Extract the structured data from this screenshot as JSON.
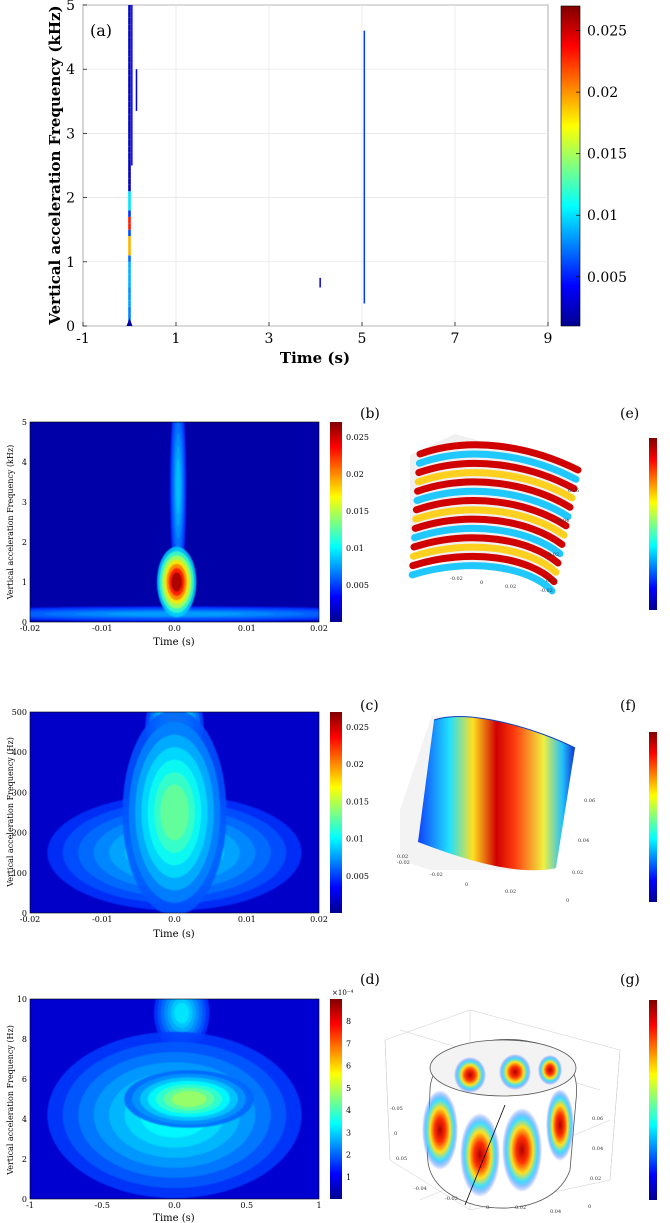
{
  "figure": {
    "panel_labels": [
      "(a)",
      "(b)",
      "(c)",
      "(d)",
      "(e)",
      "(f)",
      "(g)"
    ]
  },
  "chart_data": [
    {
      "id": "a",
      "type": "heatmap",
      "title": "",
      "xlabel": "Time (s)",
      "ylabel": "Vertical acceleration Frequency (kHz)",
      "xlim": [
        -1,
        9
      ],
      "ylim": [
        0,
        5
      ],
      "xticks": [
        -1,
        1,
        3,
        5,
        7,
        9
      ],
      "yticks": [
        0,
        1,
        2,
        3,
        4,
        5
      ],
      "grid": true,
      "colorbar": {
        "range": [
          0.001,
          0.027
        ],
        "ticks": [
          0.005,
          0.01,
          0.015,
          0.02,
          0.025
        ]
      },
      "features": [
        {
          "x": 0.0,
          "y0": 0.0,
          "y1": 5.0,
          "peak": 0.027
        },
        {
          "x": 0.05,
          "y0": 2.5,
          "y1": 5.0,
          "peak": 0.003
        },
        {
          "x": 0.15,
          "y0": 3.35,
          "y1": 4.0,
          "peak": 0.002
        },
        {
          "x": 4.1,
          "y0": 0.6,
          "y1": 0.75,
          "peak": 0.002
        },
        {
          "x": 5.05,
          "y0": 0.35,
          "y1": 4.6,
          "peak": 0.006
        }
      ]
    },
    {
      "id": "b",
      "type": "heatmap",
      "title": "",
      "xlabel": "Time (s)",
      "ylabel": "Vertical acceleration Frequency (kHz)",
      "xlim": [
        -0.02,
        0.02
      ],
      "ylim": [
        0,
        5
      ],
      "xtick_labels": [
        "-0.02",
        "-0.01",
        "0.0",
        "0.01",
        "0.02"
      ],
      "yticks": [
        0,
        1,
        2,
        3,
        4,
        5
      ],
      "colorbar": {
        "range": [
          0,
          0.027
        ],
        "ticks": [
          0.005,
          0.01,
          0.015,
          0.02,
          0.025
        ]
      },
      "features": [
        {
          "x": 0.0003,
          "y": 1.0,
          "sx": 0.0017,
          "sy": 0.55,
          "value": 0.026
        },
        {
          "x": 0.0005,
          "y": 3.4,
          "sx": 0.0007,
          "sy": 1.6,
          "value": 0.006
        },
        {
          "x": 0.0,
          "y": 0.2,
          "sx": 0.022,
          "sy": 0.12,
          "value": 0.005
        }
      ]
    },
    {
      "id": "c",
      "type": "heatmap",
      "title": "",
      "xlabel": "Time (s)",
      "ylabel": "Vertical acceleration Frequency (Hz)",
      "xlim": [
        -0.02,
        0.02
      ],
      "ylim": [
        0,
        500
      ],
      "xtick_labels": [
        "-0.02",
        "-0.01",
        "0.0",
        "0.01",
        "0.02"
      ],
      "yticks": [
        0,
        100,
        200,
        300,
        400,
        500
      ],
      "colorbar": {
        "range": [
          0,
          0.027
        ],
        "ticks": [
          0.005,
          0.01,
          0.015,
          0.02,
          0.025
        ]
      },
      "features": [
        {
          "x": 0.0,
          "y": 250,
          "sx": 0.0045,
          "sy": 160,
          "value": 0.011
        },
        {
          "x": 0.0,
          "y": 470,
          "sx": 0.0025,
          "sy": 60,
          "value": 0.01
        },
        {
          "x": 0.0,
          "y": 150,
          "sx": 0.011,
          "sy": 90,
          "value": 0.007
        }
      ]
    },
    {
      "id": "d",
      "type": "heatmap",
      "title": "",
      "xlabel": "Time (s)",
      "ylabel": "Vertical acceleration Frequency (Hz)",
      "xlim": [
        -1,
        1
      ],
      "ylim": [
        0,
        10
      ],
      "xtick_labels": [
        "-1",
        "-0.5",
        "0.0",
        "0.5",
        "1"
      ],
      "yticks": [
        0,
        2,
        4,
        6,
        8,
        10
      ],
      "colorbar": {
        "exponent": "×10⁻⁴",
        "range": [
          0,
          9
        ],
        "ticks": [
          1,
          2,
          3,
          4,
          5,
          6,
          7,
          8
        ]
      },
      "features": [
        {
          "x": 0.1,
          "y": 5.0,
          "sx": 0.28,
          "sy": 0.9,
          "value": 4.2
        },
        {
          "x": 0.0,
          "y": 4.2,
          "sx": 0.55,
          "sy": 2.6,
          "value": 2.6
        },
        {
          "x": 0.05,
          "y": 9.3,
          "sx": 0.12,
          "sy": 1.2,
          "value": 2.4
        }
      ]
    },
    {
      "id": "e",
      "type": "other",
      "description_tags": [
        "cylindrical-shell-mode",
        "axial-bands"
      ],
      "axis_ticks": [
        "0.06",
        "0.04",
        "0.02",
        "-0.02",
        "0",
        "0.02",
        "-0.02",
        "0.02"
      ]
    },
    {
      "id": "f",
      "type": "other",
      "description_tags": [
        "cylindrical-shell-mode",
        "single-band"
      ],
      "axis_ticks": [
        "0.02",
        "-0.02",
        "-0.02",
        "0",
        "0.02",
        "0.06",
        "0.04",
        "0.02",
        "0"
      ]
    },
    {
      "id": "g",
      "type": "other",
      "description_tags": [
        "cylindrical-shell-mode",
        "lobes"
      ],
      "axis_ticks": [
        "-0.05",
        "0",
        "0.05",
        "-0.04",
        "-0.02",
        "0",
        "0.02",
        "0.04",
        "0.06",
        "0.04",
        "0.02",
        "0"
      ]
    }
  ]
}
